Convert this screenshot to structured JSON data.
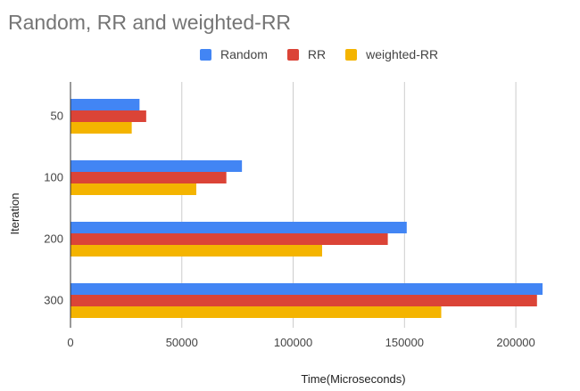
{
  "chart_data": {
    "type": "bar",
    "orientation": "horizontal",
    "title": "Random, RR and weighted-RR",
    "xlabel": "Time(Microseconds)",
    "ylabel": "Iteration",
    "categories": [
      "50",
      "100",
      "200",
      "300"
    ],
    "series": [
      {
        "name": "Random",
        "color": "#4285f4",
        "values": [
          31000,
          77000,
          151000,
          212000
        ]
      },
      {
        "name": "RR",
        "color": "#db4437",
        "values": [
          34000,
          70000,
          142500,
          209500
        ]
      },
      {
        "name": "weighted-RR",
        "color": "#f4b400",
        "values": [
          27500,
          56500,
          113000,
          166500
        ]
      }
    ],
    "xlim": [
      0,
      220000
    ],
    "xticks": [
      "0",
      "50000",
      "100000",
      "150000",
      "200000"
    ],
    "grid": true,
    "legend_position": "top"
  }
}
